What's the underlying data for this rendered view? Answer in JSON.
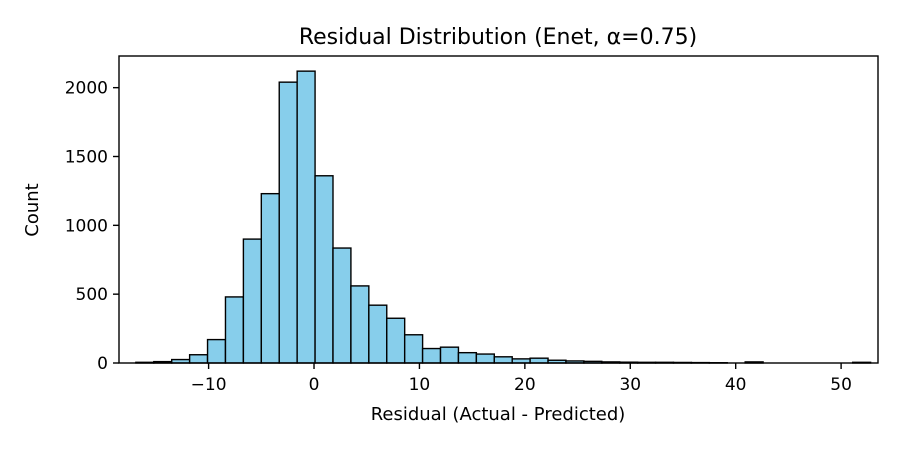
{
  "chart_data": {
    "type": "bar",
    "title": "Residual Distribution (Enet, α=0.75)",
    "xlabel": "Residual (Actual - Predicted)",
    "ylabel": "Count",
    "xlim": [
      -18.5,
      53.5
    ],
    "ylim": [
      0,
      2230
    ],
    "xticks": [
      -10,
      0,
      10,
      20,
      30,
      40,
      50
    ],
    "xtick_labels": [
      "−10",
      "0",
      "10",
      "20",
      "30",
      "40",
      "50"
    ],
    "yticks": [
      0,
      500,
      1000,
      1500,
      2000
    ],
    "ytick_labels": [
      "0",
      "500",
      "1000",
      "1500",
      "2000"
    ],
    "bin_width": 1.7,
    "bins_start": -16.9,
    "values": [
      5,
      10,
      25,
      60,
      170,
      480,
      900,
      1230,
      2040,
      2120,
      1360,
      835,
      560,
      420,
      325,
      205,
      105,
      115,
      75,
      65,
      45,
      30,
      35,
      20,
      15,
      12,
      8,
      6,
      5,
      5,
      4,
      3,
      2,
      0,
      8,
      0,
      0,
      0,
      0,
      0,
      5
    ],
    "bar_color": "#87ceeb",
    "edge_color": "#000000",
    "grid": false,
    "legend": "none"
  }
}
